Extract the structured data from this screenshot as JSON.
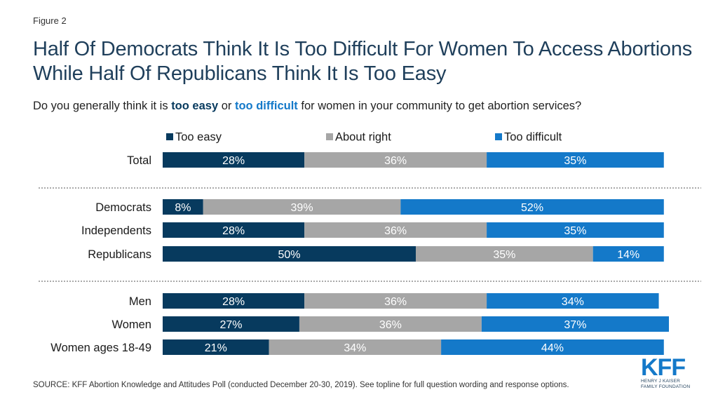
{
  "figure_label": "Figure 2",
  "title": "Half Of Democrats Think It Is Too Difficult For Women To Access Abortions While Half Of Republicans Think It Is Too Easy",
  "subtitle": {
    "pre": "Do you generally think it is ",
    "easy": "too easy",
    "mid": " or ",
    "difficult": "too difficult",
    "post": " for women in your community to get abortion services?"
  },
  "source": "SOURCE: KFF Abortion Knowledge and Attitudes Poll (conducted December 20-30, 2019). See topline for full question wording and response options.",
  "logo": {
    "text": "KFF",
    "line1": "HENRY J KAISER",
    "line2": "FAMILY FOUNDATION"
  },
  "chart_data": {
    "type": "bar",
    "orientation": "horizontal",
    "stacked": true,
    "xlim": [
      0,
      100
    ],
    "legend_position": "top",
    "series": [
      {
        "name": "Too easy",
        "color": "#073a5e",
        "values": [
          28,
          8,
          28,
          50,
          28,
          27,
          21
        ],
        "labels": [
          "28%",
          "8%",
          "28%",
          "50%",
          "28%",
          "27%",
          "21%"
        ]
      },
      {
        "name": "About right",
        "color": "#a6a6a6",
        "values": [
          36,
          39,
          36,
          35,
          36,
          36,
          34
        ],
        "labels": [
          "36%",
          "39%",
          "36%",
          "35%",
          "36%",
          "36%",
          "34%"
        ]
      },
      {
        "name": "Too difficult",
        "color": "#1479c9",
        "values": [
          35,
          52,
          35,
          14,
          34,
          37,
          44
        ],
        "labels": [
          "35%",
          "52%",
          "35%",
          "14%",
          "34%",
          "37%",
          "44%"
        ]
      }
    ],
    "categories": [
      "Total",
      "Democrats",
      "Independents",
      "Republicans",
      "Men",
      "Women",
      "Women ages 18-49"
    ],
    "groups": [
      [
        0
      ],
      [
        1,
        2,
        3
      ],
      [
        4,
        5,
        6
      ]
    ]
  }
}
